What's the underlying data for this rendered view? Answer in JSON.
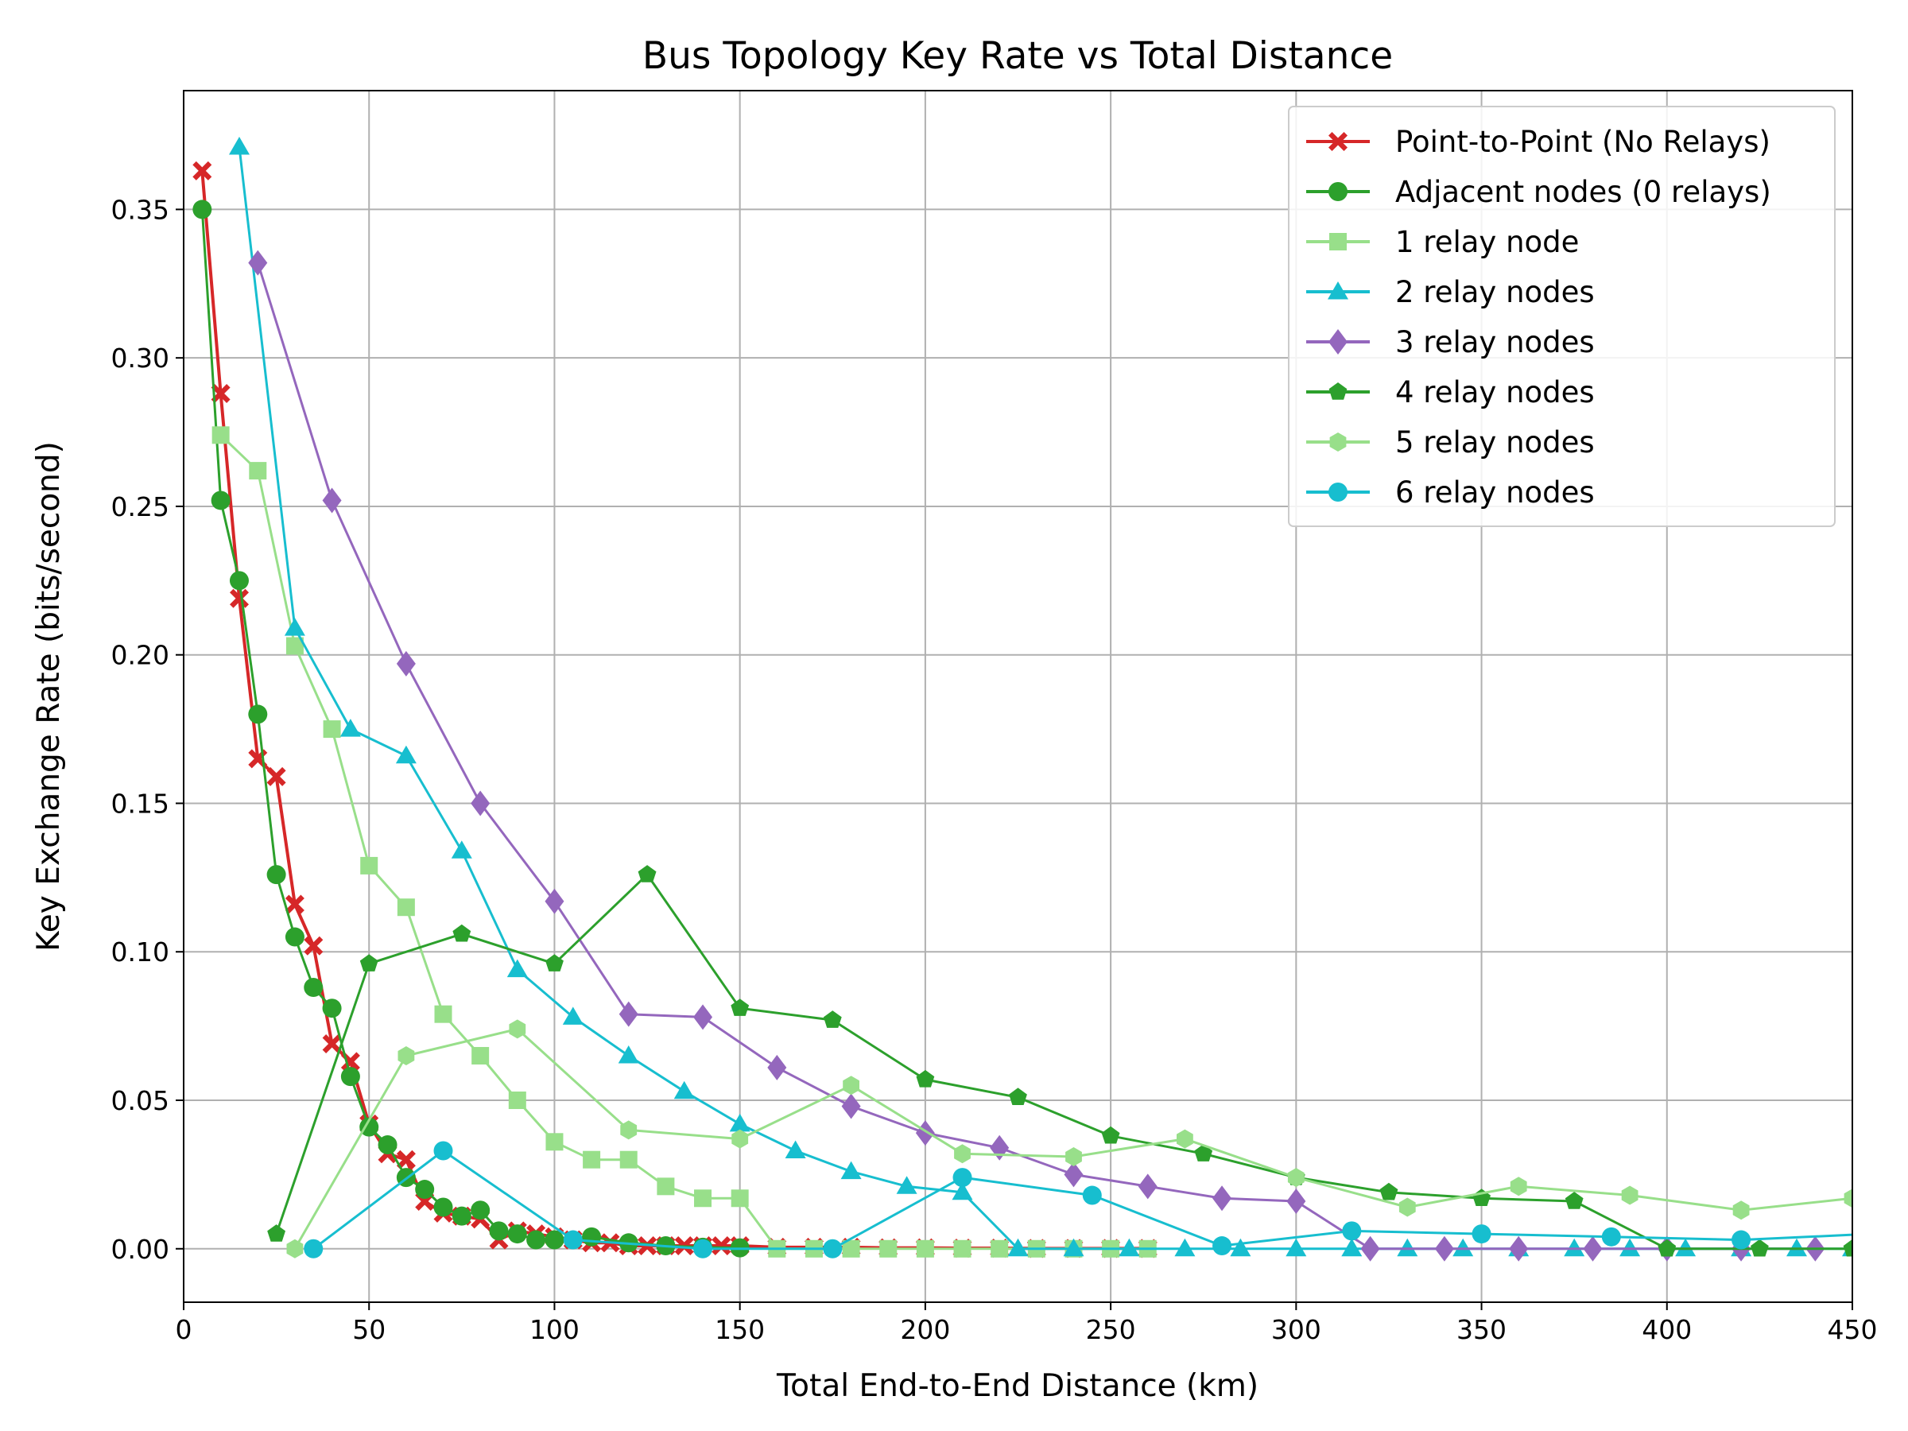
{
  "chart_data": {
    "type": "line",
    "title": "Bus Topology Key Rate vs Total Distance",
    "xlabel": "Total End-to-End Distance (km)",
    "ylabel": "Key Exchange Rate (bits/second)",
    "xlim": [
      0,
      450
    ],
    "ylim": [
      -0.018,
      0.39
    ],
    "xticks": [
      0,
      50,
      100,
      150,
      200,
      250,
      300,
      350,
      400,
      450
    ],
    "yticks": [
      0.0,
      0.05,
      0.1,
      0.15,
      0.2,
      0.25,
      0.3,
      0.35
    ],
    "grid": true,
    "legend_position": "top-right",
    "series": [
      {
        "name": "Point-to-Point (No Relays)",
        "color": "#d62728",
        "marker": "x-filled",
        "x": [
          5,
          10,
          15,
          20,
          25,
          30,
          35,
          40,
          45,
          50,
          55,
          60,
          65,
          70,
          75,
          80,
          85,
          90,
          95,
          100,
          105,
          110,
          115,
          120,
          125,
          130,
          135,
          140,
          145,
          150,
          160,
          170,
          180,
          190,
          200,
          210,
          220,
          230,
          240,
          250,
          260
        ],
        "y": [
          0.363,
          0.288,
          0.219,
          0.165,
          0.159,
          0.116,
          0.102,
          0.069,
          0.063,
          0.042,
          0.032,
          0.03,
          0.016,
          0.012,
          0.011,
          0.01,
          0.003,
          0.006,
          0.005,
          0.004,
          0.003,
          0.002,
          0.002,
          0.001,
          0.001,
          0.001,
          0.001,
          0.001,
          0.001,
          0.001,
          0.0005,
          0.0005,
          0.0005,
          0.0003,
          0.0003,
          0.0002,
          0.0002,
          0.0001,
          0.0001,
          0.0001,
          0.0001
        ]
      },
      {
        "name": "Adjacent nodes (0 relays)",
        "color": "#2ca02c",
        "marker": "circle",
        "x": [
          5,
          10,
          15,
          20,
          25,
          30,
          35,
          40,
          45,
          50,
          55,
          60,
          65,
          70,
          75,
          80,
          85,
          90,
          95,
          100,
          110,
          120,
          130,
          140,
          150
        ],
        "y": [
          0.35,
          0.252,
          0.225,
          0.18,
          0.126,
          0.105,
          0.088,
          0.081,
          0.058,
          0.041,
          0.035,
          0.024,
          0.02,
          0.014,
          0.011,
          0.013,
          0.006,
          0.005,
          0.003,
          0.003,
          0.004,
          0.002,
          0.001,
          0.0005,
          0.0003
        ]
      },
      {
        "name": "1 relay node",
        "color": "#98df8a",
        "marker": "square",
        "x": [
          10,
          20,
          30,
          40,
          50,
          60,
          70,
          80,
          90,
          100,
          110,
          120,
          130,
          140,
          150,
          160,
          170,
          180,
          190,
          200,
          210,
          220,
          230,
          240,
          250,
          260
        ],
        "y": [
          0.274,
          0.262,
          0.203,
          0.175,
          0.129,
          0.115,
          0.079,
          0.065,
          0.05,
          0.036,
          0.03,
          0.03,
          0.021,
          0.017,
          0.017,
          0.0,
          0.0,
          0.0,
          0.0,
          0.0,
          0.0,
          0.0,
          0.0,
          0.0,
          0.0,
          0.0
        ]
      },
      {
        "name": "2 relay nodes",
        "color": "#17becf",
        "marker": "triangle",
        "x": [
          15,
          30,
          45,
          60,
          75,
          90,
          105,
          120,
          135,
          150,
          165,
          180,
          195,
          210,
          225,
          240,
          255,
          270,
          285,
          300,
          315,
          330,
          345,
          360,
          375,
          390,
          405,
          420,
          435,
          450
        ],
        "y": [
          0.371,
          0.209,
          0.175,
          0.166,
          0.134,
          0.094,
          0.078,
          0.065,
          0.053,
          0.042,
          0.033,
          0.026,
          0.021,
          0.019,
          0.0,
          0.0,
          0.0,
          0.0,
          0.0,
          0.0,
          0.0,
          0.0,
          0.0,
          0.0,
          0.0,
          0.0,
          0.0,
          0.0,
          0.0,
          0.0
        ]
      },
      {
        "name": "3 relay nodes",
        "color": "#9467bd",
        "marker": "diamond",
        "x": [
          20,
          40,
          60,
          80,
          100,
          120,
          140,
          160,
          180,
          200,
          220,
          240,
          260,
          280,
          300,
          320,
          340,
          360,
          380,
          400,
          420,
          440
        ],
        "y": [
          0.332,
          0.252,
          0.197,
          0.15,
          0.117,
          0.079,
          0.078,
          0.061,
          0.048,
          0.039,
          0.034,
          0.025,
          0.021,
          0.017,
          0.016,
          0.0,
          0.0,
          0.0,
          0.0,
          0.0,
          0.0,
          0.0
        ]
      },
      {
        "name": "4 relay nodes",
        "color": "#2ca02c",
        "marker": "pentagon",
        "x": [
          25,
          50,
          75,
          100,
          125,
          150,
          175,
          200,
          225,
          250,
          275,
          300,
          325,
          350,
          375,
          400,
          425,
          450
        ],
        "y": [
          0.005,
          0.096,
          0.106,
          0.096,
          0.126,
          0.081,
          0.077,
          0.057,
          0.051,
          0.038,
          0.032,
          0.024,
          0.019,
          0.017,
          0.016,
          0.0,
          0.0,
          0.0
        ]
      },
      {
        "name": "5 relay nodes",
        "color": "#98df8a",
        "marker": "hexagon",
        "x": [
          30,
          60,
          90,
          120,
          150,
          180,
          210,
          240,
          270,
          300,
          330,
          360,
          390,
          420,
          450
        ],
        "y": [
          0.0,
          0.065,
          0.074,
          0.04,
          0.037,
          0.055,
          0.032,
          0.031,
          0.037,
          0.024,
          0.014,
          0.021,
          0.018,
          0.013,
          0.017
        ]
      },
      {
        "name": "6 relay nodes",
        "color": "#17becf",
        "marker": "circle",
        "x": [
          35,
          70,
          105,
          140,
          175,
          210,
          245,
          280,
          315,
          350,
          385,
          420,
          455
        ],
        "y": [
          0.0,
          0.033,
          0.003,
          0.0,
          0.0,
          0.024,
          0.018,
          0.001,
          0.006,
          0.005,
          0.004,
          0.003,
          0.005
        ]
      }
    ]
  }
}
